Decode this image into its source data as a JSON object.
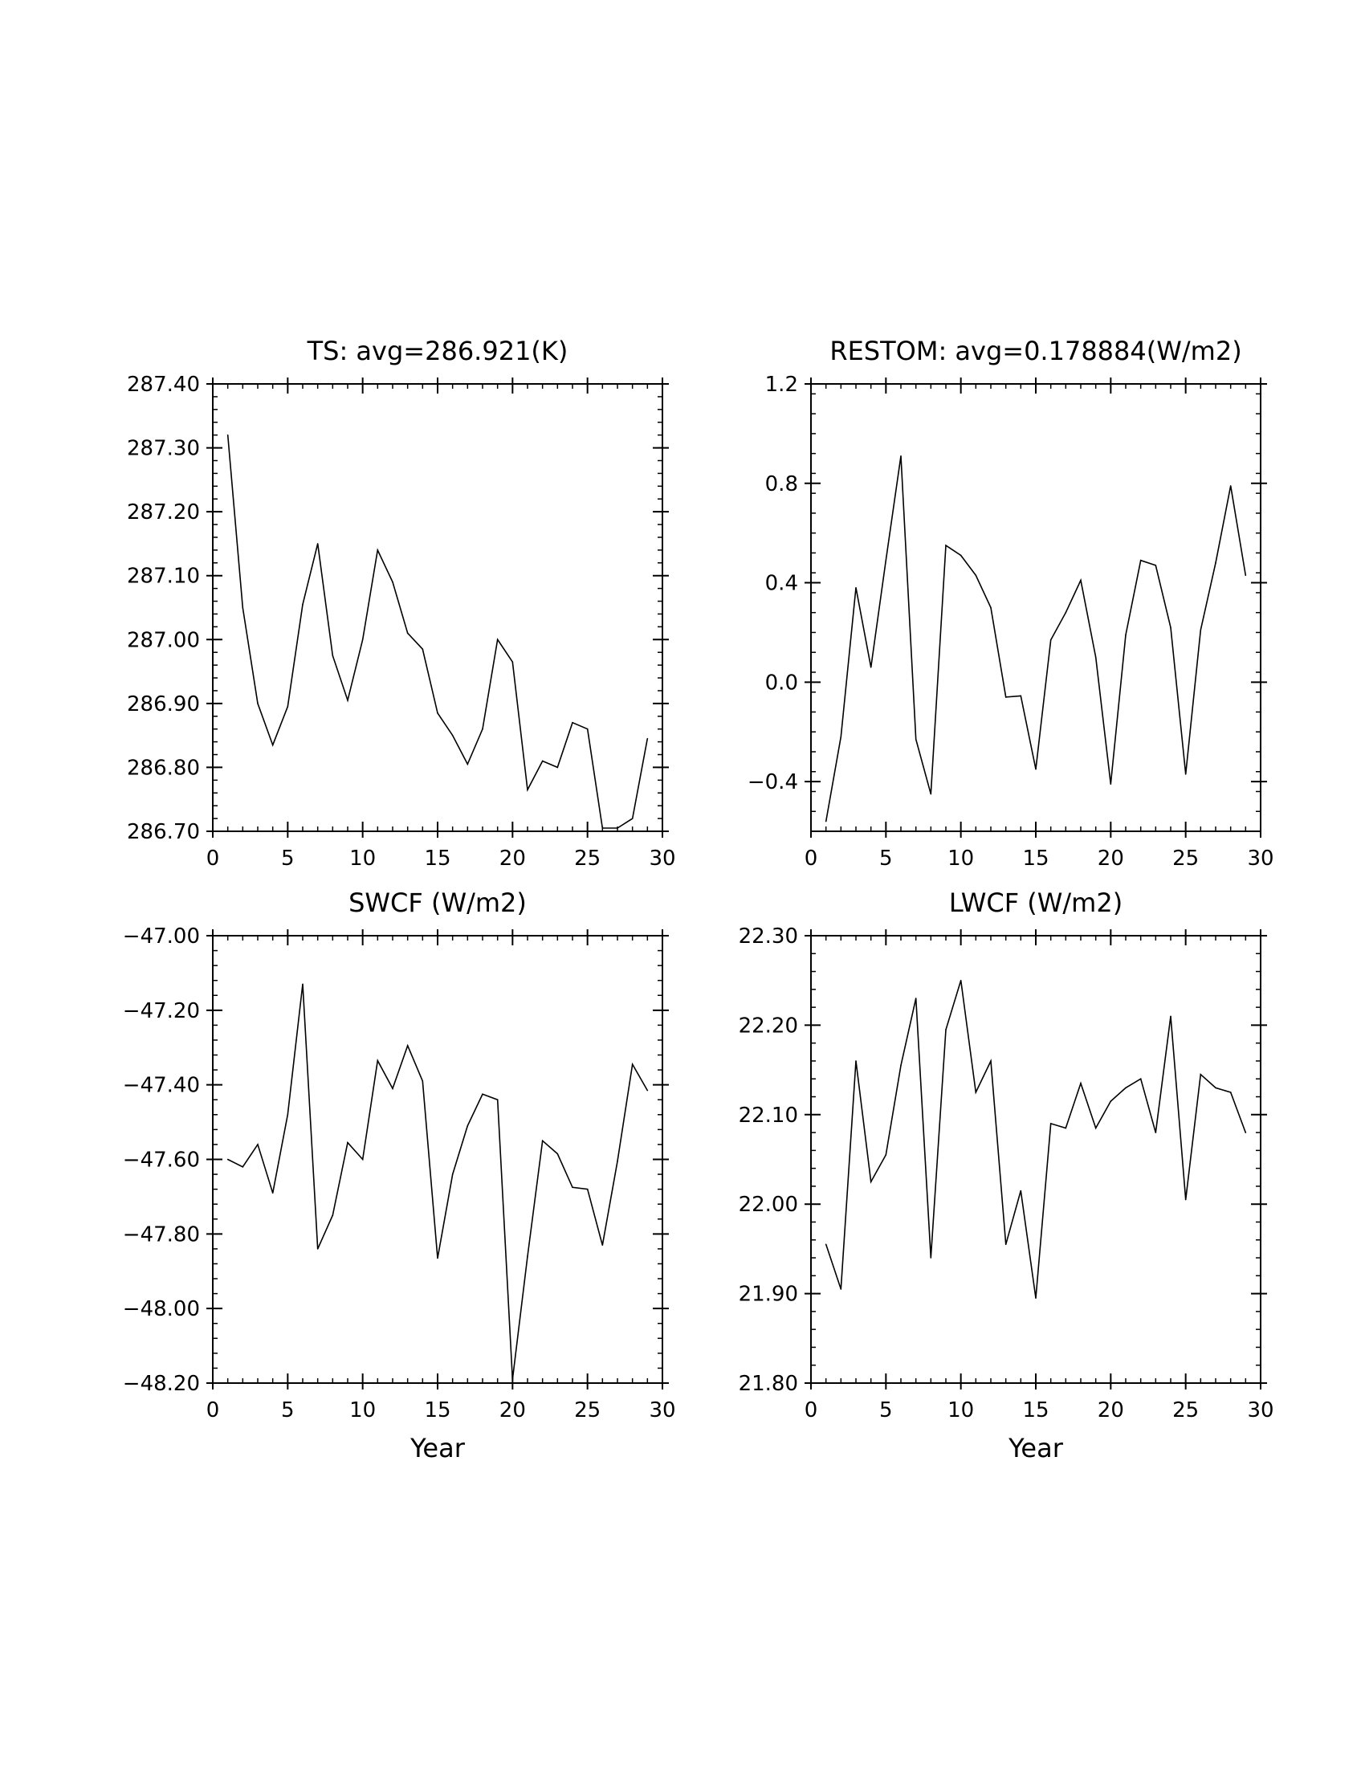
{
  "chart_data": [
    {
      "type": "line",
      "title": "TS: avg=286.921(K)",
      "xlabel": "",
      "ylabel": "",
      "xlim": [
        0,
        30
      ],
      "ylim": [
        286.7,
        287.4
      ],
      "x_ticks": [
        0,
        5,
        10,
        15,
        20,
        25,
        30
      ],
      "x_tick_labels": [
        "0",
        "5",
        "10",
        "15",
        "20",
        "25",
        "30"
      ],
      "y_ticks": [
        286.7,
        286.8,
        286.9,
        287.0,
        287.1,
        287.2,
        287.3,
        287.4
      ],
      "y_tick_labels": [
        "286.70",
        "286.80",
        "286.90",
        "287.00",
        "287.10",
        "287.20",
        "287.30",
        "287.40"
      ],
      "grid": false,
      "series": [
        {
          "x": [
            1,
            2,
            3,
            4,
            5,
            6,
            7,
            8,
            9,
            10,
            11,
            12,
            13,
            14,
            15,
            16,
            17,
            18,
            19,
            20,
            21,
            22,
            23,
            24,
            25,
            26,
            27,
            28,
            29
          ],
          "values": [
            287.32,
            287.05,
            286.9,
            286.835,
            286.895,
            287.055,
            287.15,
            286.975,
            286.905,
            287.0,
            287.14,
            287.09,
            287.01,
            286.985,
            286.885,
            286.85,
            286.805,
            286.86,
            287.0,
            286.965,
            286.765,
            286.81,
            286.8,
            286.87,
            286.86,
            286.705,
            286.705,
            286.72,
            286.845
          ]
        }
      ],
      "line_color": "#000000"
    },
    {
      "type": "line",
      "title": "RESTOM: avg=0.178884(W/m2)",
      "xlabel": "",
      "ylabel": "",
      "xlim": [
        0,
        30
      ],
      "ylim": [
        -0.6,
        1.2
      ],
      "x_ticks": [
        0,
        5,
        10,
        15,
        20,
        25,
        30
      ],
      "x_tick_labels": [
        "0",
        "5",
        "10",
        "15",
        "20",
        "25",
        "30"
      ],
      "y_ticks": [
        -0.4,
        0.0,
        0.4,
        0.8,
        1.2
      ],
      "y_tick_labels": [
        "−0.4",
        "0.0",
        "0.4",
        "0.8",
        "1.2"
      ],
      "grid": false,
      "series": [
        {
          "x": [
            1,
            2,
            3,
            4,
            5,
            6,
            7,
            8,
            9,
            10,
            11,
            12,
            13,
            14,
            15,
            16,
            17,
            18,
            19,
            20,
            21,
            22,
            23,
            24,
            25,
            26,
            27,
            28,
            29
          ],
          "values": [
            -0.56,
            -0.22,
            0.38,
            0.06,
            0.49,
            0.91,
            -0.23,
            -0.45,
            0.55,
            0.51,
            0.43,
            0.3,
            -0.06,
            -0.055,
            -0.35,
            0.17,
            0.28,
            0.41,
            0.1,
            -0.41,
            0.19,
            0.49,
            0.47,
            0.22,
            -0.37,
            0.21,
            0.48,
            0.79,
            0.43
          ]
        }
      ],
      "line_color": "#000000"
    },
    {
      "type": "line",
      "title": "SWCF (W/m2)",
      "xlabel": "Year",
      "ylabel": "",
      "xlim": [
        0,
        30
      ],
      "ylim": [
        -48.2,
        -47.0
      ],
      "x_ticks": [
        0,
        5,
        10,
        15,
        20,
        25,
        30
      ],
      "x_tick_labels": [
        "0",
        "5",
        "10",
        "15",
        "20",
        "25",
        "30"
      ],
      "y_ticks": [
        -48.2,
        -48.0,
        -47.8,
        -47.6,
        -47.4,
        -47.2,
        -47.0
      ],
      "y_tick_labels": [
        "−48.20",
        "−48.00",
        "−47.80",
        "−47.60",
        "−47.40",
        "−47.20",
        "−47.00"
      ],
      "grid": false,
      "series": [
        {
          "x": [
            1,
            2,
            3,
            4,
            5,
            6,
            7,
            8,
            9,
            10,
            11,
            12,
            13,
            14,
            15,
            16,
            17,
            18,
            19,
            20,
            21,
            22,
            23,
            24,
            25,
            26,
            27,
            28,
            29
          ],
          "values": [
            -47.6,
            -47.62,
            -47.56,
            -47.69,
            -47.48,
            -47.13,
            -47.84,
            -47.75,
            -47.555,
            -47.6,
            -47.335,
            -47.41,
            -47.295,
            -47.39,
            -47.865,
            -47.64,
            -47.51,
            -47.425,
            -47.44,
            -48.19,
            -47.86,
            -47.55,
            -47.585,
            -47.675,
            -47.68,
            -47.83,
            -47.605,
            -47.345,
            -47.415
          ]
        }
      ],
      "line_color": "#000000"
    },
    {
      "type": "line",
      "title": "LWCF (W/m2)",
      "xlabel": "Year",
      "ylabel": "",
      "xlim": [
        0,
        30
      ],
      "ylim": [
        21.8,
        22.3
      ],
      "x_ticks": [
        0,
        5,
        10,
        15,
        20,
        25,
        30
      ],
      "x_tick_labels": [
        "0",
        "5",
        "10",
        "15",
        "20",
        "25",
        "30"
      ],
      "y_ticks": [
        21.8,
        21.9,
        22.0,
        22.1,
        22.2,
        22.3
      ],
      "y_tick_labels": [
        "21.80",
        "21.90",
        "22.00",
        "22.10",
        "22.20",
        "22.30"
      ],
      "grid": false,
      "series": [
        {
          "x": [
            1,
            2,
            3,
            4,
            5,
            6,
            7,
            8,
            9,
            10,
            11,
            12,
            13,
            14,
            15,
            16,
            17,
            18,
            19,
            20,
            21,
            22,
            23,
            24,
            25,
            26,
            27,
            28,
            29
          ],
          "values": [
            21.955,
            21.905,
            22.16,
            22.025,
            22.055,
            22.155,
            22.23,
            21.94,
            22.195,
            22.25,
            22.125,
            22.16,
            21.955,
            22.015,
            21.895,
            22.09,
            22.085,
            22.135,
            22.085,
            22.115,
            22.13,
            22.14,
            22.08,
            22.21,
            22.005,
            22.145,
            22.13,
            22.125,
            22.08
          ]
        }
      ],
      "line_color": "#000000"
    }
  ]
}
